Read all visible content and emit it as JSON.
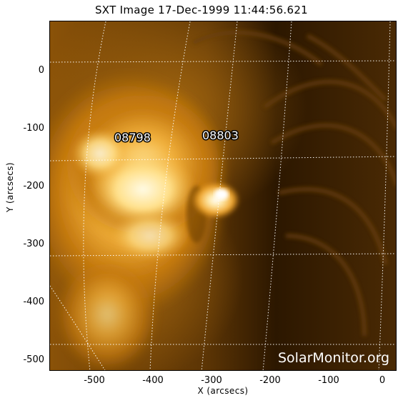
{
  "title": "SXT Image 17-Dec-1999 11:44:56.621",
  "xlabel": "X (arcsecs)",
  "ylabel": "Y (arcsecs)",
  "x_ticks": [
    "-500",
    "-400",
    "-300",
    "-200",
    "-100",
    "0"
  ],
  "y_ticks": [
    "0",
    "-100",
    "-200",
    "-300",
    "-400",
    "-500"
  ],
  "regions": [
    "08798",
    "08803"
  ],
  "watermark": "SolarMonitor.org",
  "colors": {
    "background": "#2a1600",
    "bright": "#fff6c0",
    "plasma": "#d98c14"
  }
}
